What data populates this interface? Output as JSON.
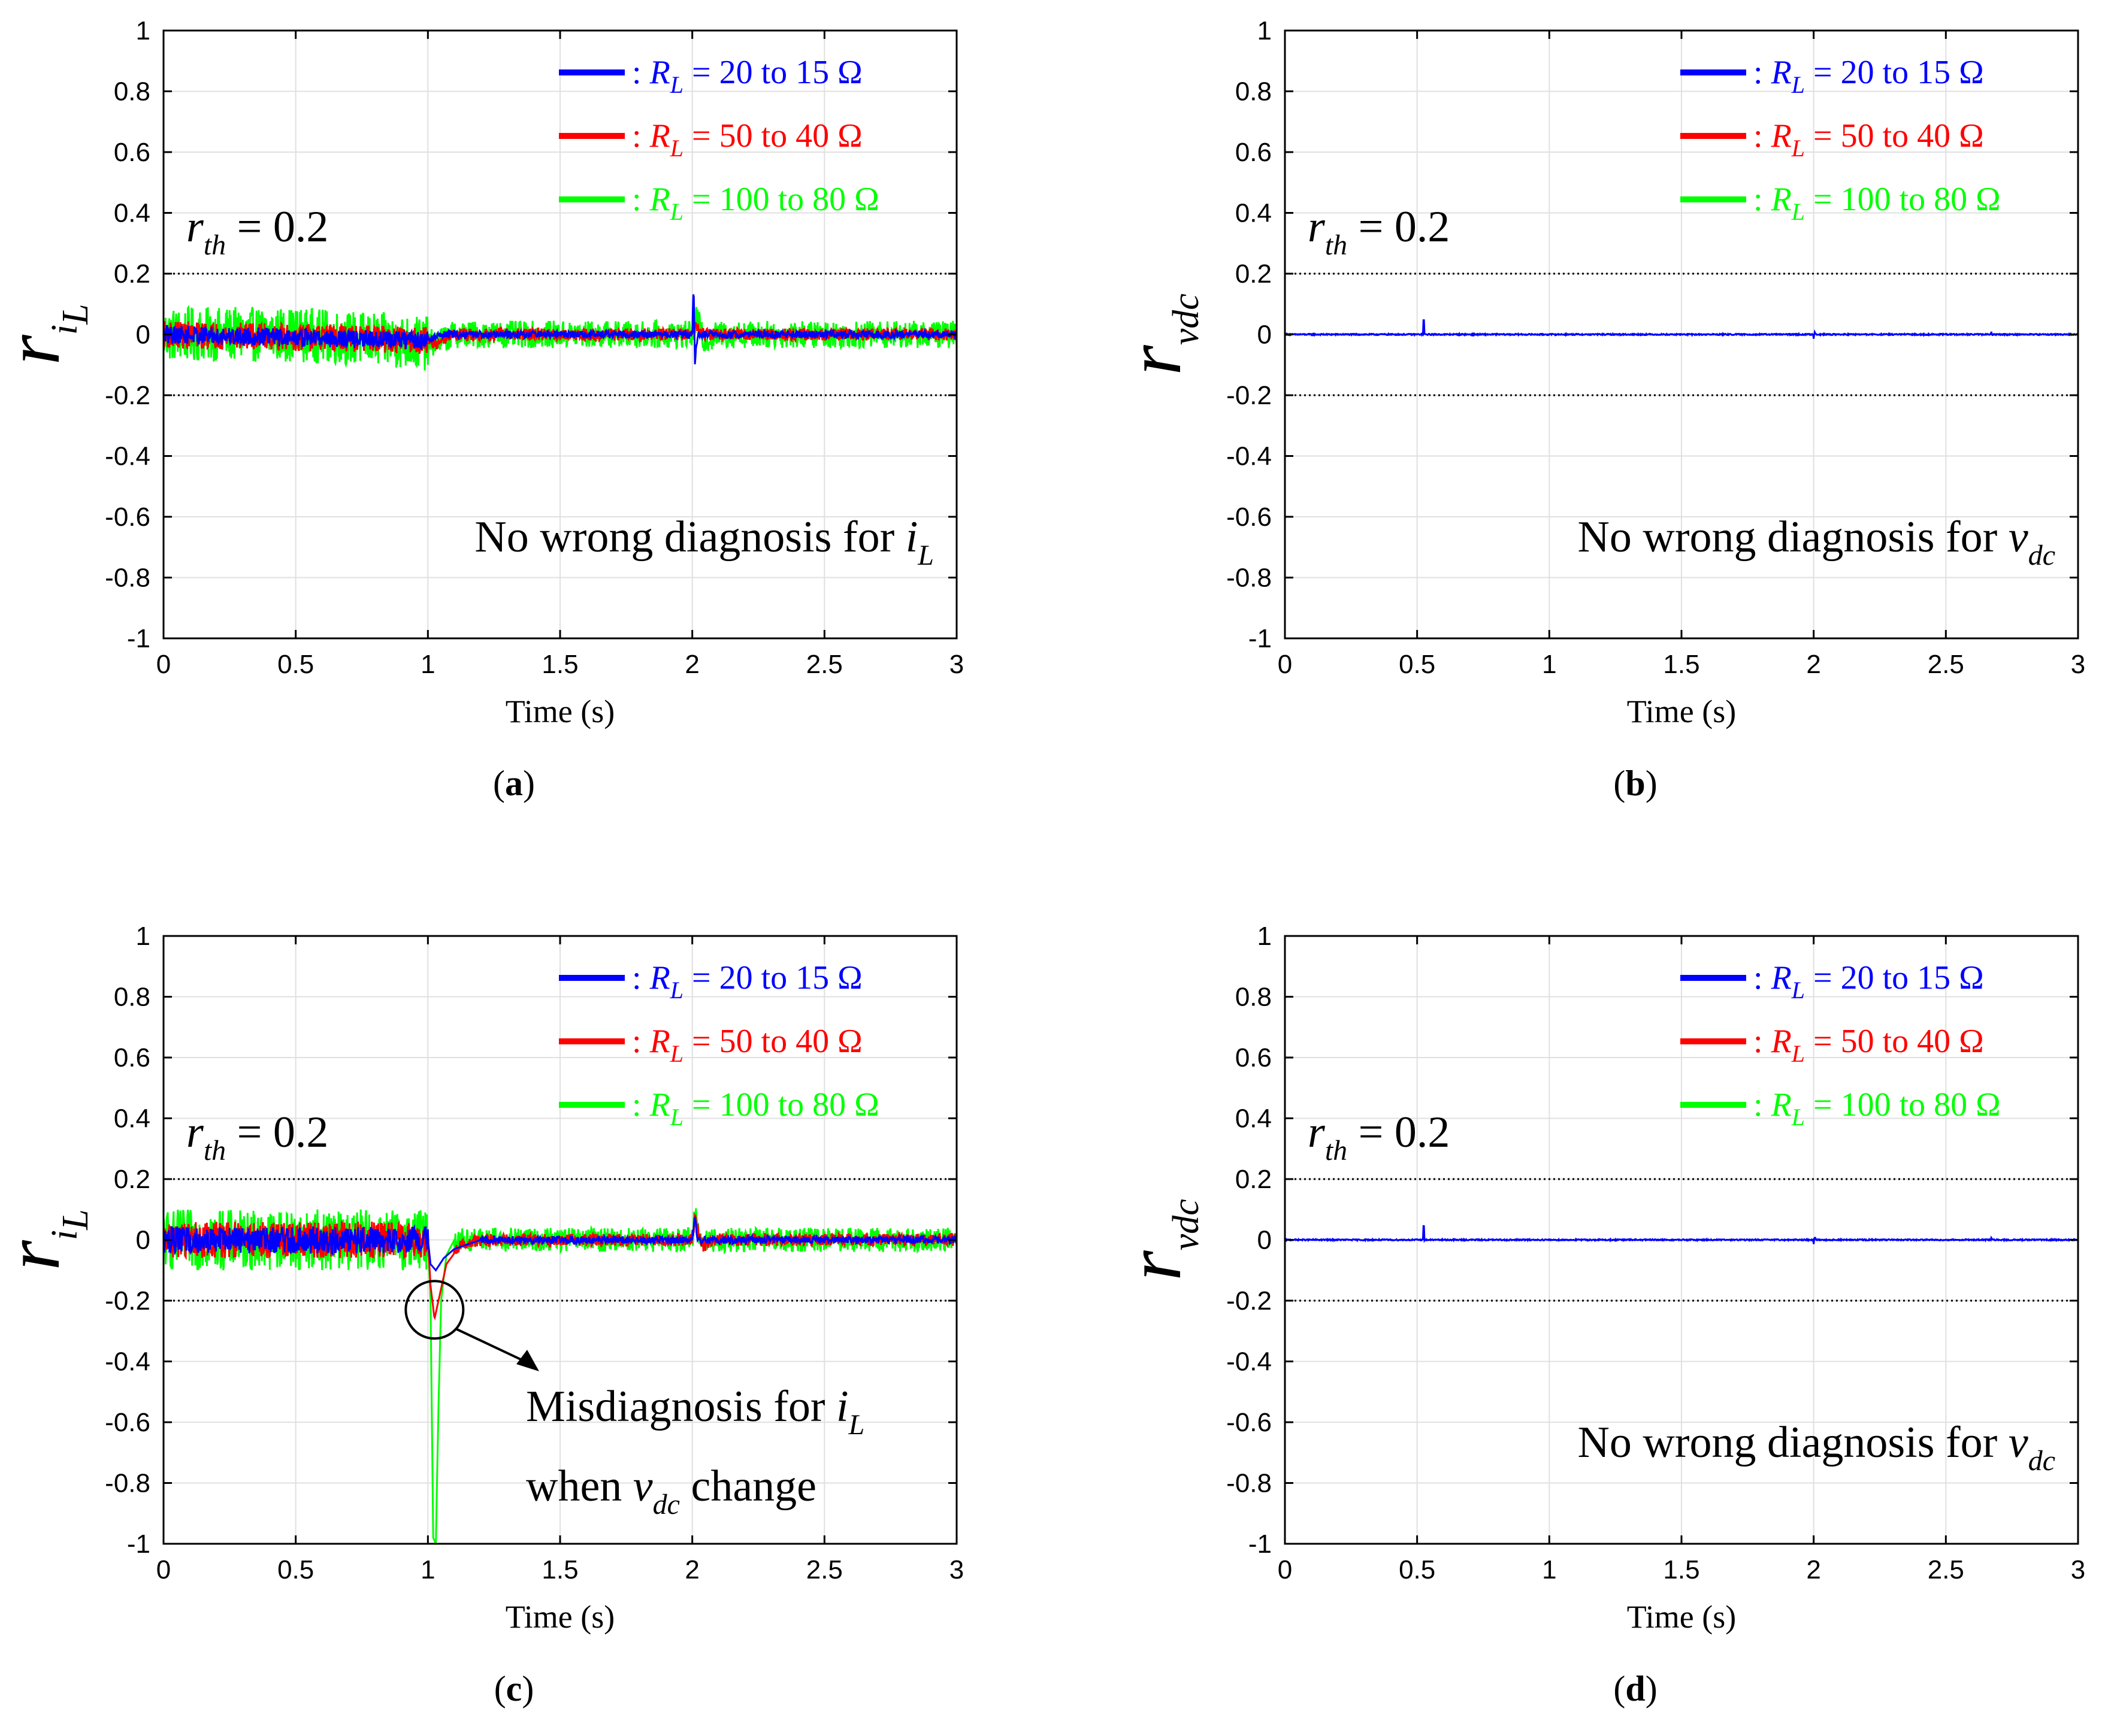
{
  "chart_data": [
    {
      "id": "a",
      "type": "line",
      "caption": "a",
      "xlabel": "Time (s)",
      "ylabel": "r",
      "ylabel_sub": "iL",
      "xlim": [
        0,
        3
      ],
      "ylim": [
        -1,
        1
      ],
      "xticks": [
        "0",
        "0.5",
        "1",
        "1.5",
        "2",
        "2.5",
        "3"
      ],
      "yticks": [
        "-1",
        "-0.8",
        "-0.6",
        "-0.4",
        "-0.2",
        "0",
        "0.2",
        "0.4",
        "0.6",
        "0.8",
        "1"
      ],
      "grid": true,
      "threshold": {
        "label_var": "r",
        "label_sub": "th",
        "label_eq": "= 0.2",
        "values": [
          0.2,
          -0.2
        ]
      },
      "annotation": {
        "text": "No wrong diagnosis for ",
        "var": "i",
        "sub": "L"
      },
      "legend": [
        {
          "prefix": ": ",
          "var": "R",
          "sub": "L",
          "text": " = 20 to 15 Ω",
          "color": "#0000ff"
        },
        {
          "prefix": ": ",
          "var": "R",
          "sub": "L",
          "text": " = 50 to 40 Ω",
          "color": "#ff0000"
        },
        {
          "prefix": ": ",
          "var": "R",
          "sub": "L",
          "text": " = 100 to 80 Ω",
          "color": "#00ff00"
        }
      ],
      "series": [
        {
          "name": "R_L = 100 to 80 Ω",
          "color": "#00ff00",
          "noise": [
            [
              0,
              1.0,
              0.09
            ],
            [
              1.0,
              3.0,
              0.045
            ]
          ],
          "points": [
            [
              0,
              0.0
            ],
            [
              0.5,
              0.0
            ],
            [
              1.0,
              -0.03
            ],
            [
              1.05,
              -0.02
            ],
            [
              1.1,
              0.0
            ],
            [
              2.0,
              0.0
            ],
            [
              2.02,
              0.06
            ],
            [
              2.04,
              -0.02
            ],
            [
              2.1,
              0.0
            ],
            [
              3.0,
              0.0
            ]
          ]
        },
        {
          "name": "R_L = 50 to 40 Ω",
          "color": "#ff0000",
          "noise": [
            [
              0,
              1.0,
              0.045
            ],
            [
              1.0,
              3.0,
              0.02
            ]
          ],
          "points": [
            [
              0,
              0.0
            ],
            [
              1.0,
              -0.02
            ],
            [
              1.03,
              -0.03
            ],
            [
              1.1,
              0.0
            ],
            [
              2.0,
              0.0
            ],
            [
              2.02,
              0.03
            ],
            [
              2.05,
              0.0
            ],
            [
              3.0,
              0.0
            ]
          ]
        },
        {
          "name": "R_L = 20 to 15 Ω",
          "color": "#0000ff",
          "noise": [
            [
              0,
              1.0,
              0.03
            ],
            [
              1.0,
              3.0,
              0.012
            ]
          ],
          "points": [
            [
              0,
              0.0
            ],
            [
              1.0,
              -0.02
            ],
            [
              1.05,
              0.0
            ],
            [
              2.0,
              0.0
            ],
            [
              2.005,
              0.17
            ],
            [
              2.01,
              -0.09
            ],
            [
              2.02,
              0.0
            ],
            [
              3.0,
              0.0
            ]
          ]
        }
      ]
    },
    {
      "id": "b",
      "type": "line",
      "caption": "b",
      "xlabel": "Time (s)",
      "ylabel": "r",
      "ylabel_sub": "vdc",
      "xlim": [
        0,
        3
      ],
      "ylim": [
        -1,
        1
      ],
      "xticks": [
        "0",
        "0.5",
        "1",
        "1.5",
        "2",
        "2.5",
        "3"
      ],
      "yticks": [
        "-1",
        "-0.8",
        "-0.6",
        "-0.4",
        "-0.2",
        "0",
        "0.2",
        "0.4",
        "0.6",
        "0.8",
        "1"
      ],
      "grid": true,
      "threshold": {
        "label_var": "r",
        "label_sub": "th",
        "label_eq": "= 0.2",
        "values": [
          0.2,
          -0.2
        ]
      },
      "annotation": {
        "text": "No wrong diagnosis for ",
        "var": "v",
        "sub": "dc"
      },
      "legend": [
        {
          "prefix": ": ",
          "var": "R",
          "sub": "L",
          "text": " = 20 to 15 Ω",
          "color": "#0000ff"
        },
        {
          "prefix": ": ",
          "var": "R",
          "sub": "L",
          "text": " = 50 to 40 Ω",
          "color": "#ff0000"
        },
        {
          "prefix": ": ",
          "var": "R",
          "sub": "L",
          "text": " = 100 to 80 Ω",
          "color": "#00ff00"
        }
      ],
      "series": [
        {
          "name": "R_L = 20 to 15 Ω",
          "color": "#0000ff",
          "noise": [
            [
              0,
              3.0,
              0.002
            ]
          ],
          "points": [
            [
              0,
              0.0
            ],
            [
              0.522,
              0.0
            ],
            [
              0.525,
              0.07
            ],
            [
              0.528,
              0.0
            ],
            [
              1.998,
              0.0
            ],
            [
              2.0,
              -0.015
            ],
            [
              2.003,
              0.01
            ],
            [
              2.01,
              0.0
            ],
            [
              2.67,
              0.0
            ],
            [
              2.672,
              0.008
            ],
            [
              2.675,
              0.0
            ],
            [
              3.0,
              0.0
            ]
          ]
        }
      ]
    },
    {
      "id": "c",
      "type": "line",
      "caption": "c",
      "xlabel": "Time (s)",
      "ylabel": "r",
      "ylabel_sub": "iL",
      "xlim": [
        0,
        3
      ],
      "ylim": [
        -1,
        1
      ],
      "xticks": [
        "0",
        "0.5",
        "1",
        "1.5",
        "2",
        "2.5",
        "3"
      ],
      "yticks": [
        "-1",
        "-0.8",
        "-0.6",
        "-0.4",
        "-0.2",
        "0",
        "0.2",
        "0.4",
        "0.6",
        "0.8",
        "1"
      ],
      "grid": true,
      "threshold": {
        "label_var": "r",
        "label_sub": "th",
        "label_eq": "= 0.2",
        "values": [
          0.2,
          -0.2
        ]
      },
      "annotation": {
        "line1": "Misdiagnosis for ",
        "var1": "i",
        "sub1": "L",
        "line2a": "when ",
        "var2": "v",
        "sub2": "dc",
        "line2b": " change"
      },
      "legend": [
        {
          "prefix": ": ",
          "var": "R",
          "sub": "L",
          "text": " = 20 to 15 Ω",
          "color": "#0000ff"
        },
        {
          "prefix": ": ",
          "var": "R",
          "sub": "L",
          "text": " = 50 to 40 Ω",
          "color": "#ff0000"
        },
        {
          "prefix": ": ",
          "var": "R",
          "sub": "L",
          "text": " = 100 to 80 Ω",
          "color": "#00ff00"
        }
      ],
      "series": [
        {
          "name": "R_L = 100 to 80 Ω",
          "color": "#00ff00",
          "noise": [
            [
              0,
              1.0,
              0.1
            ],
            [
              1.1,
              3.0,
              0.04
            ]
          ],
          "points": [
            [
              0,
              0.0
            ],
            [
              1.0,
              0.0
            ],
            [
              1.01,
              -0.2
            ],
            [
              1.02,
              -0.98
            ],
            [
              1.03,
              -1.0
            ],
            [
              1.04,
              -0.55
            ],
            [
              1.05,
              -0.2
            ],
            [
              1.07,
              -0.05
            ],
            [
              1.1,
              0.0
            ],
            [
              2.0,
              0.0
            ],
            [
              2.01,
              0.1
            ],
            [
              2.03,
              0.0
            ],
            [
              3.0,
              0.0
            ]
          ]
        },
        {
          "name": "R_L = 50 to 40 Ω",
          "color": "#ff0000",
          "noise": [
            [
              0,
              1.0,
              0.06
            ],
            [
              1.1,
              3.0,
              0.02
            ]
          ],
          "points": [
            [
              0,
              0.0
            ],
            [
              1.0,
              0.0
            ],
            [
              1.01,
              -0.15
            ],
            [
              1.025,
              -0.26
            ],
            [
              1.04,
              -0.2
            ],
            [
              1.07,
              -0.08
            ],
            [
              1.12,
              -0.02
            ],
            [
              1.2,
              0.0
            ],
            [
              2.0,
              0.0
            ],
            [
              2.01,
              0.07
            ],
            [
              2.04,
              -0.02
            ],
            [
              2.1,
              0.0
            ],
            [
              3.0,
              0.0
            ]
          ]
        },
        {
          "name": "R_L = 20 to 15 Ω",
          "color": "#0000ff",
          "noise": [
            [
              0,
              1.0,
              0.045
            ],
            [
              1.2,
              3.0,
              0.012
            ]
          ],
          "points": [
            [
              0,
              0.0
            ],
            [
              1.0,
              0.0
            ],
            [
              1.01,
              -0.08
            ],
            [
              1.03,
              -0.1
            ],
            [
              1.06,
              -0.06
            ],
            [
              1.1,
              -0.03
            ],
            [
              1.2,
              0.0
            ],
            [
              2.0,
              0.0
            ],
            [
              2.01,
              0.08
            ],
            [
              2.02,
              0.0
            ],
            [
              3.0,
              0.0
            ]
          ]
        }
      ]
    },
    {
      "id": "d",
      "type": "line",
      "caption": "d",
      "xlabel": "Time (s)",
      "ylabel": "r",
      "ylabel_sub": "vdc",
      "xlim": [
        0,
        3
      ],
      "ylim": [
        -1,
        1
      ],
      "xticks": [
        "0",
        "0.5",
        "1",
        "1.5",
        "2",
        "2.5",
        "3"
      ],
      "yticks": [
        "-1",
        "-0.8",
        "-0.6",
        "-0.4",
        "-0.2",
        "0",
        "0.2",
        "0.4",
        "0.6",
        "0.8",
        "1"
      ],
      "grid": true,
      "threshold": {
        "label_var": "r",
        "label_sub": "th",
        "label_eq": "= 0.2",
        "values": [
          0.2,
          -0.2
        ]
      },
      "annotation": {
        "text": "No wrong diagnosis for ",
        "var": "v",
        "sub": "dc"
      },
      "legend": [
        {
          "prefix": ": ",
          "var": "R",
          "sub": "L",
          "text": " = 20 to 15 Ω",
          "color": "#0000ff"
        },
        {
          "prefix": ": ",
          "var": "R",
          "sub": "L",
          "text": " = 50 to 40 Ω",
          "color": "#ff0000"
        },
        {
          "prefix": ": ",
          "var": "R",
          "sub": "L",
          "text": " = 100 to 80 Ω",
          "color": "#00ff00"
        }
      ],
      "series": [
        {
          "name": "R_L = 20 to 15 Ω",
          "color": "#0000ff",
          "noise": [
            [
              0,
              3.0,
              0.002
            ]
          ],
          "points": [
            [
              0,
              0.0
            ],
            [
              0.522,
              0.0
            ],
            [
              0.525,
              0.07
            ],
            [
              0.528,
              0.0
            ],
            [
              1.998,
              0.0
            ],
            [
              2.0,
              -0.015
            ],
            [
              2.003,
              0.01
            ],
            [
              2.01,
              0.0
            ],
            [
              2.67,
              0.0
            ],
            [
              2.672,
              0.008
            ],
            [
              2.675,
              0.0
            ],
            [
              3.0,
              0.0
            ]
          ]
        }
      ]
    }
  ]
}
